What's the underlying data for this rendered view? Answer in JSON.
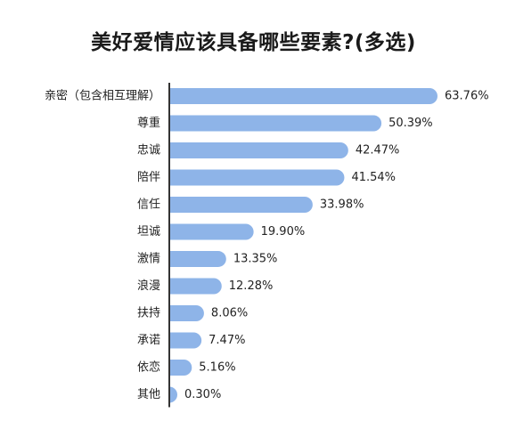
{
  "chart_data": {
    "type": "bar",
    "orientation": "horizontal",
    "title": "美好爱情应该具备哪些要素?(多选)",
    "categories": [
      "亲密（包含相互理解）",
      "尊重",
      "忠诚",
      "陪伴",
      "信任",
      "坦诚",
      "激情",
      "浪漫",
      "扶持",
      "承诺",
      "依恋",
      "其他"
    ],
    "values": [
      63.76,
      50.39,
      42.47,
      41.54,
      33.98,
      19.9,
      13.35,
      12.28,
      8.06,
      7.47,
      5.16,
      0.3
    ],
    "value_labels": [
      "63.76%",
      "50.39%",
      "42.47%",
      "41.54%",
      "33.98%",
      "19.90%",
      "13.35%",
      "12.28%",
      "8.06%",
      "7.47%",
      "5.16%",
      "0.30%"
    ],
    "unit": "%",
    "grid": false,
    "bar_color": "#8eb4e8",
    "axis_color": "#333333"
  }
}
